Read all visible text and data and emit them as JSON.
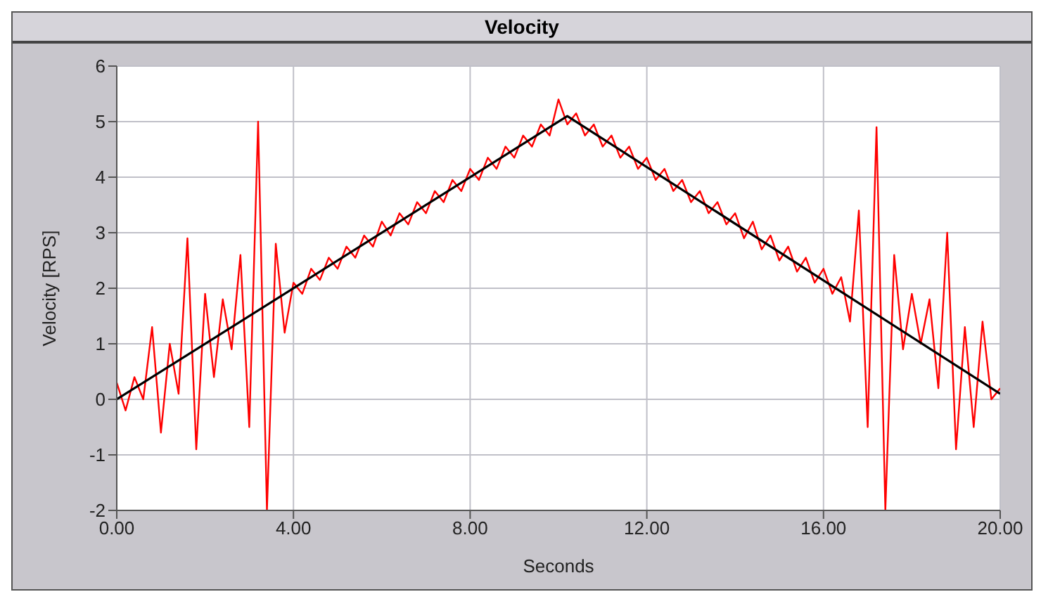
{
  "chart_data": {
    "type": "line",
    "title": "Velocity",
    "xlabel": "Seconds",
    "ylabel": "Velocity [RPS]",
    "xlim": [
      0,
      20
    ],
    "xticks": [
      {
        "value": 0,
        "label": "0.00"
      },
      {
        "value": 4,
        "label": "4.00"
      },
      {
        "value": 8,
        "label": "8.00"
      },
      {
        "value": 12,
        "label": "12.00"
      },
      {
        "value": 16,
        "label": "16.00"
      },
      {
        "value": 20,
        "label": "20.00"
      }
    ],
    "ylim": [
      -2,
      6
    ],
    "yticks": [
      -2,
      -1,
      0,
      1,
      2,
      3,
      4,
      5,
      6
    ],
    "grid": true,
    "marker": "none",
    "line_style": "solid",
    "series": [
      {
        "color": "#ff0000",
        "x": [
          0,
          0.2,
          0.4,
          0.6,
          0.8,
          1,
          1.2,
          1.4,
          1.6,
          1.8,
          2,
          2.2,
          2.4,
          2.6,
          2.8,
          3,
          3.2,
          3.4,
          3.6,
          3.8,
          4,
          4.2,
          4.4,
          4.6,
          4.8,
          5,
          5.2,
          5.4,
          5.6,
          5.8,
          6,
          6.2,
          6.4,
          6.6,
          6.8,
          7,
          7.2,
          7.4,
          7.6,
          7.8,
          8,
          8.2,
          8.4,
          8.6,
          8.8,
          9,
          9.2,
          9.4,
          9.6,
          9.8,
          10,
          10.2,
          10.4,
          10.6,
          10.8,
          11,
          11.2,
          11.4,
          11.6,
          11.8,
          12,
          12.2,
          12.4,
          12.6,
          12.8,
          13,
          13.2,
          13.4,
          13.6,
          13.8,
          14,
          14.2,
          14.4,
          14.6,
          14.8,
          15,
          15.2,
          15.4,
          15.6,
          15.8,
          16,
          16.2,
          16.4,
          16.6,
          16.8,
          17,
          17.2,
          17.4,
          17.6,
          17.8,
          18,
          18.2,
          18.4,
          18.6,
          18.8,
          19,
          19.2,
          19.4,
          19.6,
          19.8,
          20
        ],
        "values": [
          0.3,
          -0.2,
          0.4,
          0,
          1.3,
          -0.6,
          1,
          0.1,
          2.9,
          -0.9,
          1.9,
          0.4,
          1.8,
          0.9,
          2.6,
          -0.5,
          5,
          -2,
          2.8,
          1.2,
          2.1,
          1.9,
          2.35,
          2.15,
          2.55,
          2.35,
          2.75,
          2.55,
          2.95,
          2.75,
          3.2,
          2.95,
          3.35,
          3.15,
          3.55,
          3.35,
          3.75,
          3.55,
          3.95,
          3.75,
          4.15,
          3.95,
          4.35,
          4.15,
          4.55,
          4.35,
          4.75,
          4.55,
          4.95,
          4.75,
          5.4,
          4.95,
          5.15,
          4.75,
          4.95,
          4.55,
          4.75,
          4.35,
          4.55,
          4.15,
          4.35,
          3.95,
          4.15,
          3.75,
          3.95,
          3.55,
          3.75,
          3.35,
          3.55,
          3.15,
          3.35,
          2.9,
          3.2,
          2.7,
          2.95,
          2.5,
          2.75,
          2.3,
          2.55,
          2.1,
          2.35,
          1.9,
          2.2,
          1.4,
          3.4,
          -0.5,
          4.9,
          -2,
          2.6,
          0.9,
          1.9,
          1,
          1.8,
          0.2,
          3,
          -0.9,
          1.3,
          -0.5,
          1.4,
          0,
          0.2
        ]
      },
      {
        "color": "#000000",
        "x": [
          0,
          10.2,
          20
        ],
        "values": [
          0,
          5.1,
          0.1
        ]
      }
    ]
  }
}
